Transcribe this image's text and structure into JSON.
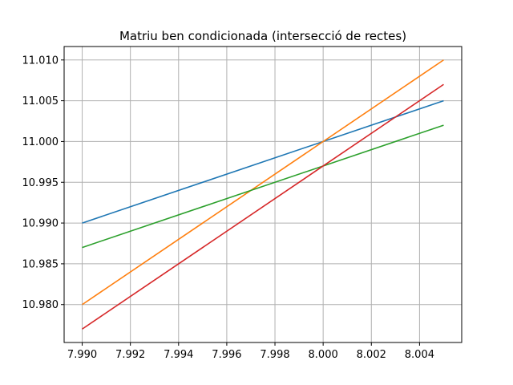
{
  "chart_data": {
    "type": "line",
    "title": "Matriu ben condicionada (intersecció de rectes)",
    "xlabel": "",
    "ylabel": "",
    "xlim": [
      7.98925,
      8.00575
    ],
    "ylim": [
      10.97535,
      11.01165
    ],
    "grid": true,
    "legend": "none",
    "x_ticks": [
      "7.990",
      "7.992",
      "7.994",
      "7.996",
      "7.998",
      "8.000",
      "8.002",
      "8.004"
    ],
    "x_tick_values": [
      7.99,
      7.992,
      7.994,
      7.996,
      7.998,
      8.0,
      8.002,
      8.004
    ],
    "y_ticks": [
      "10.980",
      "10.985",
      "10.990",
      "10.995",
      "11.000",
      "11.005",
      "11.010"
    ],
    "y_tick_values": [
      10.98,
      10.985,
      10.99,
      10.995,
      11.0,
      11.005,
      11.01
    ],
    "series": [
      {
        "color": "#1f77b4",
        "x": [
          7.99,
          8.005
        ],
        "y": [
          10.99,
          11.005
        ]
      },
      {
        "color": "#ff7f0e",
        "x": [
          7.99,
          8.005
        ],
        "y": [
          10.98,
          11.01
        ]
      },
      {
        "color": "#2ca02c",
        "x": [
          7.99,
          8.005
        ],
        "y": [
          10.987,
          11.002
        ]
      },
      {
        "color": "#d62728",
        "x": [
          7.99,
          8.005
        ],
        "y": [
          10.977,
          11.007
        ]
      }
    ],
    "colors": {
      "grid": "#b0b0b0",
      "axes": "#000000"
    }
  }
}
